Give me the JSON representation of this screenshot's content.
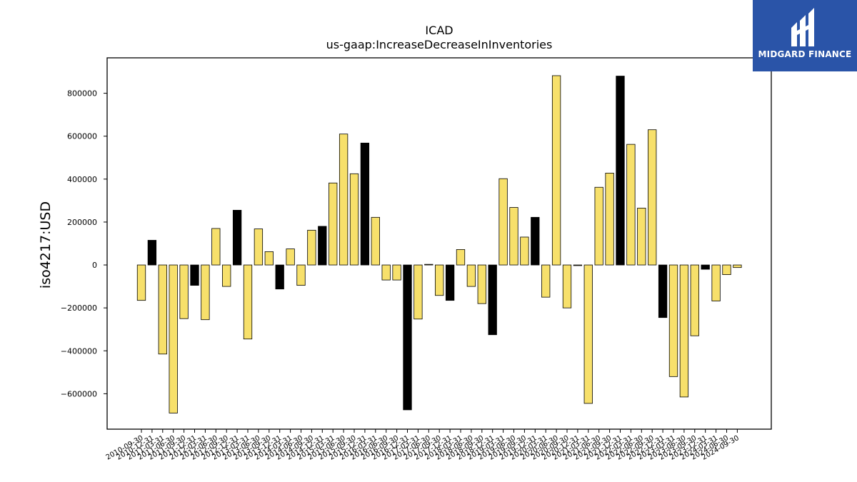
{
  "chart_data": {
    "type": "bar",
    "title": "ICAD",
    "subtitle": "us-gaap:IncreaseDecreaseInInventories",
    "xlabel": "",
    "ylabel": "iso4217:USD",
    "ylim": [
      -765000,
      965000
    ],
    "yticks": [
      -600000,
      -400000,
      -200000,
      0,
      200000,
      400000,
      600000,
      800000
    ],
    "ytick_labels": [
      "−600000",
      "−400000",
      "−200000",
      "0",
      "200000",
      "400000",
      "600000",
      "800000"
    ],
    "grid": false,
    "legend": "none",
    "colors": {
      "quarter": "#f7e06b",
      "annual": "#000000",
      "edge": "#000000"
    },
    "categories": [
      "2010-09-30",
      "2010-12-31",
      "2011-03-31",
      "2011-06-30",
      "2011-09-30",
      "2011-12-31",
      "2012-03-31",
      "2012-06-30",
      "2012-09-30",
      "2012-12-31",
      "2013-03-31",
      "2013-06-30",
      "2013-09-30",
      "2013-12-31",
      "2014-03-31",
      "2014-06-30",
      "2014-09-30",
      "2014-12-31",
      "2015-03-31",
      "2015-06-30",
      "2015-09-30",
      "2015-12-31",
      "2016-03-31",
      "2016-06-30",
      "2016-09-30",
      "2016-12-31",
      "2017-03-31",
      "2017-06-30",
      "2017-09-30",
      "2017-12-31",
      "2018-03-31",
      "2018-06-30",
      "2018-09-30",
      "2018-12-31",
      "2019-03-31",
      "2019-06-30",
      "2019-09-30",
      "2019-12-31",
      "2020-03-31",
      "2020-06-30",
      "2020-09-30",
      "2020-12-31",
      "2021-03-31",
      "2021-06-30",
      "2021-09-30",
      "2021-12-31",
      "2022-03-31",
      "2022-06-30",
      "2022-09-30",
      "2022-12-31",
      "2023-03-31",
      "2023-06-30",
      "2023-09-30",
      "2023-12-31",
      "2024-03-31",
      "2024-06-30",
      "2024-09-30"
    ],
    "values": [
      -165000,
      115000,
      -415000,
      -690000,
      -250000,
      -95000,
      -255000,
      170000,
      -100000,
      255000,
      -345000,
      168000,
      62000,
      -112000,
      75000,
      -95000,
      162000,
      180000,
      382000,
      610000,
      425000,
      568000,
      222000,
      -70000,
      -70000,
      -675000,
      -252000,
      3000,
      -142000,
      -165000,
      72000,
      -100000,
      -180000,
      -325000,
      402000,
      268000,
      130000,
      222000,
      -150000,
      882000,
      -200000,
      -3000,
      -645000,
      362000,
      428000,
      880000,
      562000,
      265000,
      630000,
      -245000,
      -520000,
      -615000,
      -330000,
      -20000,
      -168000,
      -45000,
      -12000
    ],
    "highlight": [
      false,
      true,
      false,
      false,
      false,
      true,
      false,
      false,
      false,
      true,
      false,
      false,
      false,
      true,
      false,
      false,
      false,
      true,
      false,
      false,
      false,
      true,
      false,
      false,
      false,
      true,
      false,
      false,
      false,
      true,
      false,
      false,
      false,
      true,
      false,
      false,
      false,
      true,
      false,
      false,
      false,
      false,
      false,
      false,
      false,
      true,
      false,
      false,
      false,
      true,
      false,
      false,
      false,
      true,
      false,
      false,
      false
    ]
  },
  "logo": {
    "text": "MIDGARD FINANCE",
    "icon": "midgard-logo-icon"
  }
}
